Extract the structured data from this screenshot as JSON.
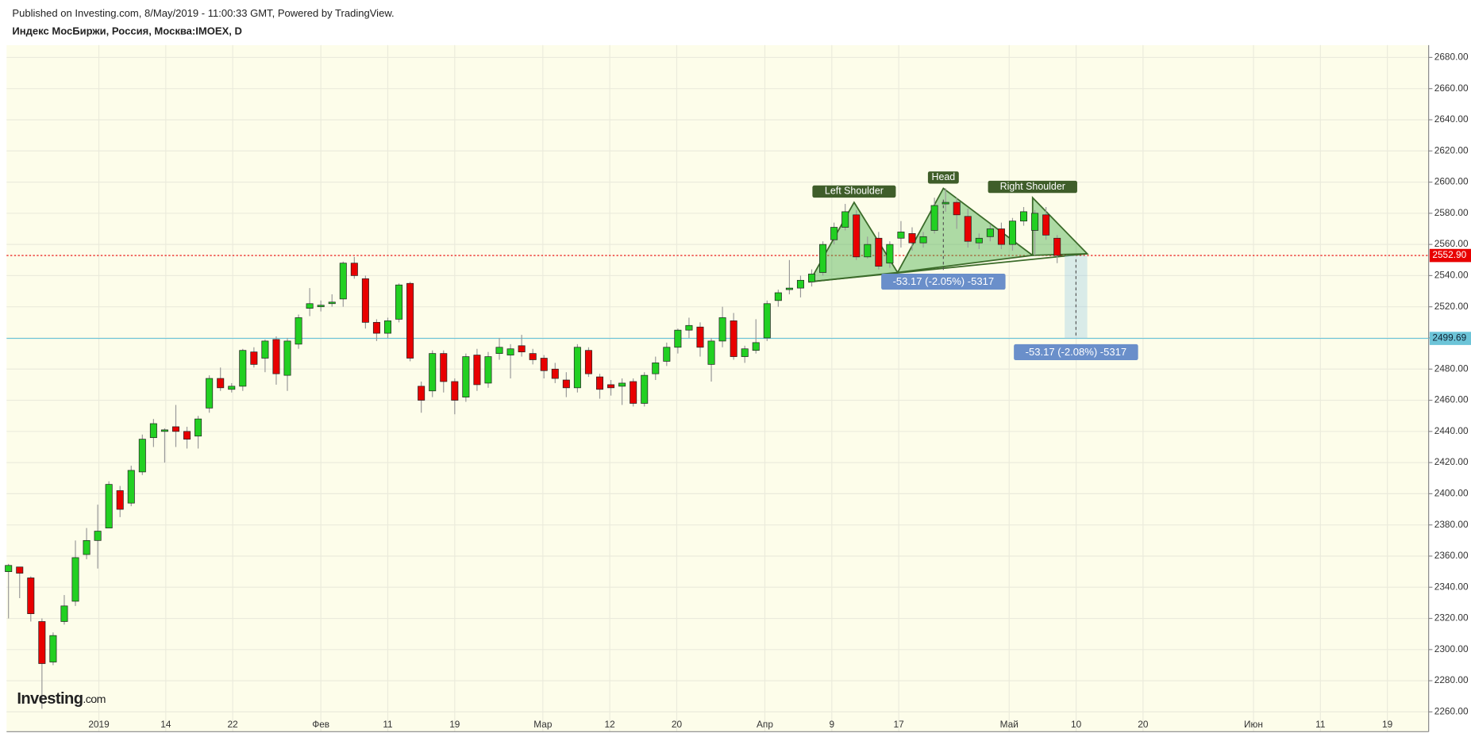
{
  "chart_data": {
    "type": "candlestick",
    "subtitle": "Published on Investing.com, 8/May/2019 - 11:00:33 GMT, Powered by TradingView.",
    "title": "Индекс МосБиржи, Россия, Москва:IMOEX, D",
    "logo": {
      "name": "Investing",
      "suffix": ".com"
    },
    "up_color": "#22d022",
    "down_color": "#e80000",
    "open": [
      2350,
      2353,
      2346,
      2318,
      2292,
      2318,
      2331,
      2361,
      2370,
      2378,
      2402,
      2394,
      2414,
      2436,
      2440,
      2443,
      2440,
      2437,
      2455,
      2474,
      2467,
      2469,
      2491,
      2487,
      2499,
      2476,
      2496,
      2519,
      2520,
      2522,
      2525,
      2548,
      2538,
      2510,
      2503,
      2512,
      2535,
      2469,
      2466,
      2490,
      2472,
      2462,
      2489,
      2471,
      2490,
      2489,
      2495,
      2490,
      2487,
      2480,
      2473,
      2468,
      2492,
      2475,
      2470,
      2469,
      2472,
      2458,
      2477,
      2485,
      2494,
      2505,
      2507,
      2483,
      2498,
      2511,
      2488,
      2492,
      2500,
      2524,
      2531,
      2532,
      2536,
      2542,
      2563,
      2571,
      2579,
      2552,
      2564,
      2548,
      2564,
      2567,
      2561,
      2569,
      2586,
      2587,
      2578,
      2561,
      2565,
      2570,
      2560,
      2575,
      2569,
      2579,
      2564
    ],
    "high": [
      2355,
      2353,
      2347,
      2320,
      2311,
      2335,
      2370,
      2378,
      2393,
      2408,
      2405,
      2418,
      2438,
      2448,
      2442,
      2457,
      2443,
      2450,
      2476,
      2481,
      2471,
      2493,
      2494,
      2499,
      2501,
      2500,
      2515,
      2532,
      2524,
      2528,
      2549,
      2552,
      2540,
      2512,
      2513,
      2535,
      2536,
      2472,
      2492,
      2492,
      2474,
      2490,
      2493,
      2491,
      2500,
      2496,
      2502,
      2493,
      2489,
      2484,
      2478,
      2496,
      2494,
      2477,
      2473,
      2474,
      2474,
      2478,
      2488,
      2497,
      2506,
      2513,
      2510,
      2500,
      2520,
      2516,
      2495,
      2512,
      2524,
      2531,
      2550,
      2540,
      2544,
      2562,
      2574,
      2586,
      2582,
      2565,
      2568,
      2562,
      2575,
      2571,
      2568,
      2590,
      2596,
      2590,
      2583,
      2567,
      2573,
      2574,
      2577,
      2584,
      2582,
      2584,
      2566
    ],
    "low": [
      2320,
      2333,
      2318,
      2262,
      2290,
      2316,
      2328,
      2358,
      2352,
      2378,
      2385,
      2392,
      2412,
      2430,
      2420,
      2430,
      2429,
      2429,
      2452,
      2466,
      2465,
      2466,
      2481,
      2478,
      2470,
      2466,
      2493,
      2514,
      2517,
      2520,
      2520,
      2538,
      2506,
      2498,
      2500,
      2510,
      2485,
      2452,
      2462,
      2465,
      2451,
      2459,
      2466,
      2468,
      2486,
      2474,
      2488,
      2483,
      2474,
      2471,
      2462,
      2465,
      2475,
      2461,
      2463,
      2457,
      2456,
      2456,
      2473,
      2482,
      2490,
      2500,
      2488,
      2472,
      2494,
      2486,
      2484,
      2490,
      2498,
      2520,
      2528,
      2526,
      2533,
      2540,
      2560,
      2569,
      2550,
      2551,
      2544,
      2545,
      2558,
      2556,
      2558,
      2567,
      2581,
      2570,
      2558,
      2557,
      2562,
      2557,
      2556,
      2572,
      2553,
      2563,
      2548
    ],
    "close": [
      2354,
      2349,
      2323,
      2291,
      2309,
      2328,
      2359,
      2370,
      2376,
      2406,
      2390,
      2415,
      2435,
      2445,
      2441,
      2440,
      2435,
      2448,
      2474,
      2468,
      2469,
      2492,
      2483,
      2498,
      2477,
      2498,
      2513,
      2522,
      2521,
      2523,
      2548,
      2540,
      2510,
      2503,
      2511,
      2534,
      2487,
      2460,
      2490,
      2472,
      2460,
      2488,
      2470,
      2488,
      2494,
      2493,
      2491,
      2486,
      2479,
      2474,
      2468,
      2494,
      2477,
      2467,
      2468,
      2471,
      2458,
      2476,
      2484,
      2494,
      2505,
      2508,
      2494,
      2498,
      2513,
      2488,
      2493,
      2497,
      2522,
      2529,
      2532,
      2537,
      2541,
      2560,
      2571,
      2581,
      2552,
      2560,
      2546,
      2560,
      2568,
      2561,
      2565,
      2585,
      2587,
      2579,
      2562,
      2564,
      2570,
      2560,
      2575,
      2581,
      2580,
      2566,
      2552.9
    ],
    "xlim": [
      -0.17,
      127.3
    ],
    "xticks": [
      {
        "value": 8.1,
        "label": "2019"
      },
      {
        "value": 14.1,
        "label": "14"
      },
      {
        "value": 20.1,
        "label": "22"
      },
      {
        "value": 28.0,
        "label": "Фев"
      },
      {
        "value": 34.0,
        "label": "11"
      },
      {
        "value": 40.0,
        "label": "19"
      },
      {
        "value": 47.9,
        "label": "Мар"
      },
      {
        "value": 53.9,
        "label": "12"
      },
      {
        "value": 59.9,
        "label": "20"
      },
      {
        "value": 67.8,
        "label": "Апр"
      },
      {
        "value": 73.8,
        "label": "9"
      },
      {
        "value": 79.8,
        "label": "17"
      },
      {
        "value": 89.7,
        "label": "Май"
      },
      {
        "value": 95.7,
        "label": "10"
      },
      {
        "value": 101.7,
        "label": "20"
      },
      {
        "value": 111.6,
        "label": "Июн"
      },
      {
        "value": 117.6,
        "label": "11"
      },
      {
        "value": 123.6,
        "label": "19"
      }
    ],
    "ylim": [
      2247.3,
      2687.9
    ],
    "yticks": [
      {
        "value": 2260,
        "label": "2260.00"
      },
      {
        "value": 2280,
        "label": "2280.00"
      },
      {
        "value": 2300,
        "label": "2300.00"
      },
      {
        "value": 2320,
        "label": "2320.00"
      },
      {
        "value": 2340,
        "label": "2340.00"
      },
      {
        "value": 2360,
        "label": "2360.00"
      },
      {
        "value": 2380,
        "label": "2380.00"
      },
      {
        "value": 2400,
        "label": "2400.00"
      },
      {
        "value": 2420,
        "label": "2420.00"
      },
      {
        "value": 2440,
        "label": "2440.00"
      },
      {
        "value": 2460,
        "label": "2460.00"
      },
      {
        "value": 2480,
        "label": "2480.00"
      },
      {
        "value": 2500,
        "label": "2500.00"
      },
      {
        "value": 2520,
        "label": "2520.00"
      },
      {
        "value": 2540,
        "label": "2540.00"
      },
      {
        "value": 2560,
        "label": "2560.00"
      },
      {
        "value": 2580,
        "label": "2580.00"
      },
      {
        "value": 2600,
        "label": "2600.00"
      },
      {
        "value": 2620,
        "label": "2620.00"
      },
      {
        "value": 2640,
        "label": "2640.00"
      },
      {
        "value": 2660,
        "label": "2660.00"
      },
      {
        "value": 2680,
        "label": "2680.00"
      }
    ],
    "grid": true,
    "levels": [
      {
        "value": 2552.9,
        "label": "2552.90",
        "color": "#e80000"
      },
      {
        "value": 2499.69,
        "label": "2499.69",
        "color": "#6cc4d8"
      }
    ],
    "pattern": {
      "x": [
        71.8,
        75.8,
        79.7,
        83.8,
        91.8,
        91.8,
        96.7
      ],
      "y": [
        2536,
        2587,
        2542,
        2596,
        2553,
        2590,
        2554
      ],
      "labels": [
        "Left Shoulder",
        "Head",
        "Right Shoulder"
      ]
    },
    "measures": [
      {
        "label": "-53.17 (-2.05%) -5317"
      },
      {
        "label": "-53.17 (-2.08%) -5317"
      }
    ]
  }
}
